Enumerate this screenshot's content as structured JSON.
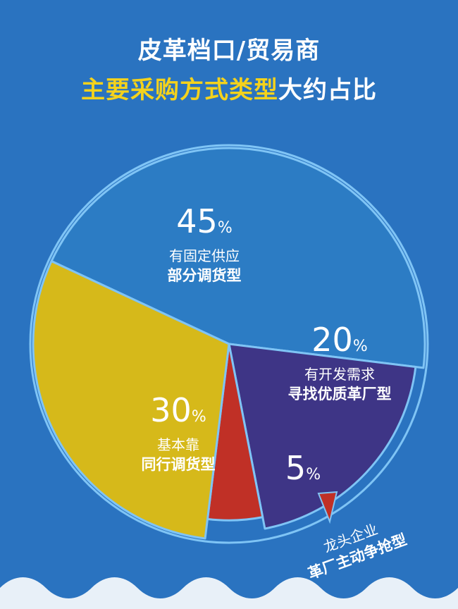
{
  "title": {
    "line1": "皮革档口/贸易商",
    "line2_highlight": "主要采购方式类型",
    "line2_rest": "大约占比"
  },
  "colors": {
    "background": "#2a73c0",
    "highlight": "#f4d21c",
    "outline": "#7fc4f5"
  },
  "chart_data": {
    "type": "pie",
    "unit": "%",
    "slices": [
      {
        "value": 45,
        "label_line1": "有固定供应",
        "label_line2": "部分调货型",
        "color": "#2c7cc4"
      },
      {
        "value": 20,
        "label_line1": "有开发需求",
        "label_line2": "寻找优质革厂型",
        "color": "#3e3586"
      },
      {
        "value": 5,
        "label_line1": "龙头企业",
        "label_line2": "革厂主动争抢型",
        "color": "#c03026"
      },
      {
        "value": 30,
        "label_line1": "基本靠",
        "label_line2": "同行调货型",
        "color": "#d6b91a"
      }
    ]
  }
}
